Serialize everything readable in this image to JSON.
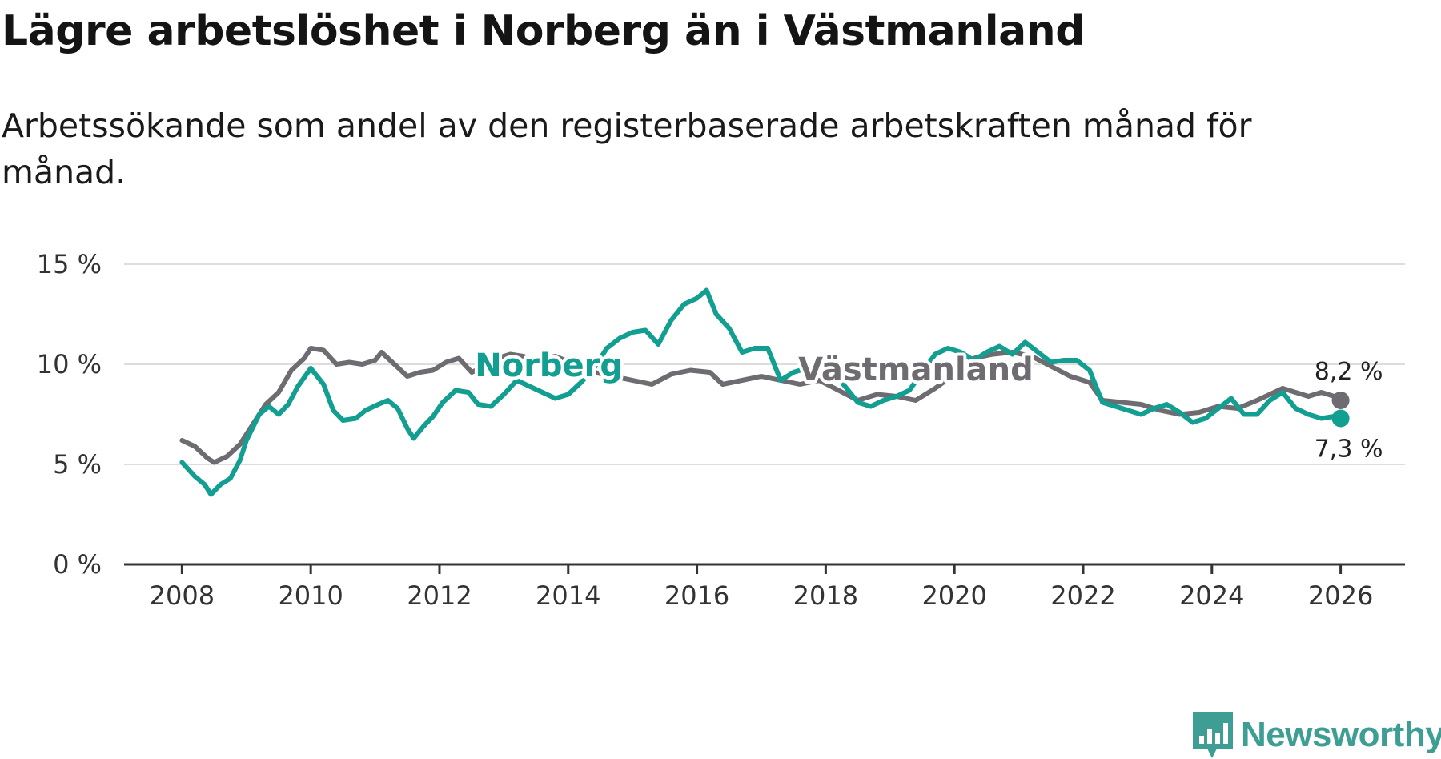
{
  "title": "Lägre arbetslöshet i Norberg än i Västmanland",
  "subtitle": "Arbetssökande som andel av den registerbaserade arbetskraften månad för månad.",
  "logo": {
    "text": "Newsworthy",
    "icon": "newsworthy-chart-icon"
  },
  "colors": {
    "norberg": "#139e92",
    "vastmanland": "#6e6c70",
    "grid": "#dddddd",
    "axis": "#333333"
  },
  "chart_data": {
    "type": "line",
    "title": "Lägre arbetslöshet i Norberg än i Västmanland",
    "subtitle": "Arbetssökande som andel av den registerbaserade arbetskraften månad för månad.",
    "xlabel": "",
    "ylabel": "",
    "x_range": [
      2007.1,
      2027.0
    ],
    "ylim": [
      0,
      15
    ],
    "y_ticks": [
      {
        "value": 0,
        "label": "0 %"
      },
      {
        "value": 5,
        "label": "5 %"
      },
      {
        "value": 10,
        "label": "10 %"
      },
      {
        "value": 15,
        "label": "15 %"
      }
    ],
    "x_ticks": [
      {
        "value": 2008,
        "label": "2008"
      },
      {
        "value": 2010,
        "label": "2010"
      },
      {
        "value": 2012,
        "label": "2012"
      },
      {
        "value": 2014,
        "label": "2014"
      },
      {
        "value": 2016,
        "label": "2016"
      },
      {
        "value": 2018,
        "label": "2018"
      },
      {
        "value": 2020,
        "label": "2020"
      },
      {
        "value": 2022,
        "label": "2022"
      },
      {
        "value": 2024,
        "label": "2024"
      },
      {
        "value": 2026,
        "label": "2026"
      }
    ],
    "grid": true,
    "series": [
      {
        "name": "Västmanland",
        "label": "Västmanland",
        "color": "#6e6c70",
        "label_at": [
          2019.4,
          9.2
        ],
        "end_label": "8,2 %",
        "points": [
          [
            2008.0,
            6.2
          ],
          [
            2008.2,
            5.9
          ],
          [
            2008.4,
            5.3
          ],
          [
            2008.5,
            5.1
          ],
          [
            2008.7,
            5.4
          ],
          [
            2008.9,
            6.0
          ],
          [
            2009.1,
            7.0
          ],
          [
            2009.3,
            8.0
          ],
          [
            2009.5,
            8.6
          ],
          [
            2009.7,
            9.7
          ],
          [
            2009.9,
            10.3
          ],
          [
            2010.0,
            10.8
          ],
          [
            2010.2,
            10.7
          ],
          [
            2010.4,
            10.0
          ],
          [
            2010.6,
            10.1
          ],
          [
            2010.8,
            10.0
          ],
          [
            2011.0,
            10.2
          ],
          [
            2011.1,
            10.6
          ],
          [
            2011.3,
            10.0
          ],
          [
            2011.5,
            9.4
          ],
          [
            2011.7,
            9.6
          ],
          [
            2011.9,
            9.7
          ],
          [
            2012.1,
            10.1
          ],
          [
            2012.3,
            10.3
          ],
          [
            2012.5,
            9.6
          ],
          [
            2012.7,
            9.9
          ],
          [
            2012.9,
            10.3
          ],
          [
            2013.1,
            10.5
          ],
          [
            2013.3,
            10.4
          ],
          [
            2013.5,
            10.2
          ],
          [
            2013.8,
            10.4
          ],
          [
            2014.1,
            10.0
          ],
          [
            2014.4,
            9.6
          ],
          [
            2014.7,
            9.4
          ],
          [
            2015.0,
            9.2
          ],
          [
            2015.3,
            9.0
          ],
          [
            2015.6,
            9.5
          ],
          [
            2015.9,
            9.7
          ],
          [
            2016.2,
            9.6
          ],
          [
            2016.4,
            9.0
          ],
          [
            2016.7,
            9.2
          ],
          [
            2017.0,
            9.4
          ],
          [
            2017.3,
            9.2
          ],
          [
            2017.6,
            9.0
          ],
          [
            2017.9,
            9.2
          ],
          [
            2018.2,
            8.7
          ],
          [
            2018.5,
            8.2
          ],
          [
            2018.8,
            8.5
          ],
          [
            2019.1,
            8.4
          ],
          [
            2019.4,
            8.2
          ],
          [
            2019.7,
            8.8
          ],
          [
            2020.0,
            9.5
          ],
          [
            2020.3,
            10.3
          ],
          [
            2020.6,
            10.5
          ],
          [
            2020.9,
            10.6
          ],
          [
            2021.2,
            10.4
          ],
          [
            2021.5,
            9.9
          ],
          [
            2021.8,
            9.4
          ],
          [
            2022.1,
            9.1
          ],
          [
            2022.3,
            8.2
          ],
          [
            2022.6,
            8.1
          ],
          [
            2022.9,
            8.0
          ],
          [
            2023.2,
            7.7
          ],
          [
            2023.5,
            7.5
          ],
          [
            2023.8,
            7.6
          ],
          [
            2024.1,
            7.9
          ],
          [
            2024.4,
            7.8
          ],
          [
            2024.7,
            8.2
          ],
          [
            2024.9,
            8.5
          ],
          [
            2025.1,
            8.8
          ],
          [
            2025.3,
            8.6
          ],
          [
            2025.5,
            8.4
          ],
          [
            2025.7,
            8.6
          ],
          [
            2025.9,
            8.4
          ],
          [
            2026.0,
            8.2
          ]
        ]
      },
      {
        "name": "Norberg",
        "label": "Norberg",
        "color": "#139e92",
        "label_at": [
          2013.7,
          9.4
        ],
        "end_label": "7,3 %",
        "points": [
          [
            2008.0,
            5.1
          ],
          [
            2008.2,
            4.4
          ],
          [
            2008.35,
            4.0
          ],
          [
            2008.45,
            3.5
          ],
          [
            2008.6,
            4.0
          ],
          [
            2008.75,
            4.3
          ],
          [
            2008.9,
            5.2
          ],
          [
            2009.0,
            6.2
          ],
          [
            2009.2,
            7.5
          ],
          [
            2009.35,
            7.9
          ],
          [
            2009.5,
            7.5
          ],
          [
            2009.65,
            8.0
          ],
          [
            2009.8,
            8.9
          ],
          [
            2010.0,
            9.8
          ],
          [
            2010.2,
            9.0
          ],
          [
            2010.35,
            7.7
          ],
          [
            2010.5,
            7.2
          ],
          [
            2010.7,
            7.3
          ],
          [
            2010.85,
            7.7
          ],
          [
            2011.05,
            8.0
          ],
          [
            2011.2,
            8.2
          ],
          [
            2011.35,
            7.8
          ],
          [
            2011.5,
            6.8
          ],
          [
            2011.6,
            6.3
          ],
          [
            2011.75,
            6.9
          ],
          [
            2011.9,
            7.4
          ],
          [
            2012.05,
            8.1
          ],
          [
            2012.25,
            8.7
          ],
          [
            2012.45,
            8.6
          ],
          [
            2012.6,
            8.0
          ],
          [
            2012.8,
            7.9
          ],
          [
            2013.0,
            8.5
          ],
          [
            2013.2,
            9.2
          ],
          [
            2013.4,
            8.9
          ],
          [
            2013.6,
            8.6
          ],
          [
            2013.8,
            8.3
          ],
          [
            2014.0,
            8.5
          ],
          [
            2014.2,
            9.1
          ],
          [
            2014.4,
            9.8
          ],
          [
            2014.6,
            10.8
          ],
          [
            2014.8,
            11.3
          ],
          [
            2015.0,
            11.6
          ],
          [
            2015.2,
            11.7
          ],
          [
            2015.4,
            11.0
          ],
          [
            2015.6,
            12.2
          ],
          [
            2015.8,
            13.0
          ],
          [
            2016.0,
            13.3
          ],
          [
            2016.15,
            13.7
          ],
          [
            2016.3,
            12.5
          ],
          [
            2016.5,
            11.8
          ],
          [
            2016.7,
            10.6
          ],
          [
            2016.9,
            10.8
          ],
          [
            2017.1,
            10.8
          ],
          [
            2017.3,
            9.2
          ],
          [
            2017.5,
            9.6
          ],
          [
            2017.7,
            9.8
          ],
          [
            2017.9,
            9.6
          ],
          [
            2018.1,
            9.7
          ],
          [
            2018.3,
            8.9
          ],
          [
            2018.5,
            8.1
          ],
          [
            2018.7,
            7.9
          ],
          [
            2018.9,
            8.2
          ],
          [
            2019.1,
            8.4
          ],
          [
            2019.3,
            8.7
          ],
          [
            2019.5,
            9.6
          ],
          [
            2019.7,
            10.5
          ],
          [
            2019.9,
            10.8
          ],
          [
            2020.1,
            10.6
          ],
          [
            2020.3,
            10.2
          ],
          [
            2020.5,
            10.6
          ],
          [
            2020.7,
            10.9
          ],
          [
            2020.9,
            10.5
          ],
          [
            2021.1,
            11.1
          ],
          [
            2021.3,
            10.6
          ],
          [
            2021.5,
            10.1
          ],
          [
            2021.7,
            10.2
          ],
          [
            2021.9,
            10.2
          ],
          [
            2022.1,
            9.7
          ],
          [
            2022.3,
            8.1
          ],
          [
            2022.5,
            7.9
          ],
          [
            2022.7,
            7.7
          ],
          [
            2022.9,
            7.5
          ],
          [
            2023.1,
            7.8
          ],
          [
            2023.3,
            8.0
          ],
          [
            2023.5,
            7.6
          ],
          [
            2023.7,
            7.1
          ],
          [
            2023.9,
            7.3
          ],
          [
            2024.1,
            7.8
          ],
          [
            2024.3,
            8.3
          ],
          [
            2024.5,
            7.5
          ],
          [
            2024.7,
            7.5
          ],
          [
            2024.9,
            8.2
          ],
          [
            2025.1,
            8.6
          ],
          [
            2025.3,
            7.8
          ],
          [
            2025.5,
            7.5
          ],
          [
            2025.7,
            7.3
          ],
          [
            2025.9,
            7.4
          ],
          [
            2026.0,
            7.3
          ]
        ]
      }
    ]
  }
}
